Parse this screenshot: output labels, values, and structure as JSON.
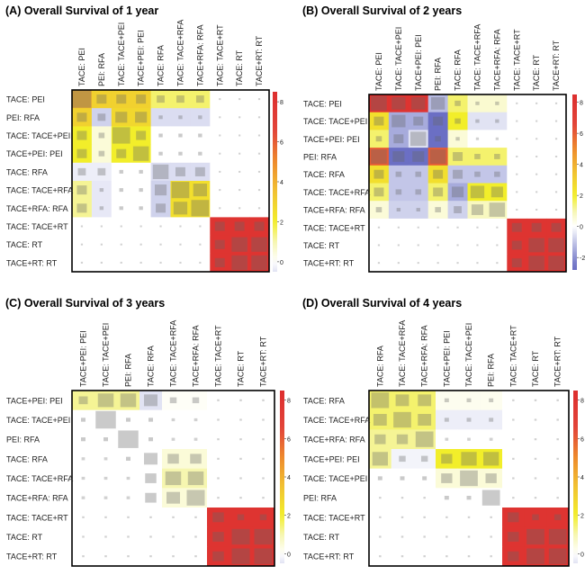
{
  "colors": {
    "scale": [
      [
        "#6b6fc4",
        -2.6
      ],
      [
        "#b7bbe3",
        -1.2
      ],
      [
        "#ffffff",
        0
      ],
      [
        "#f6f6b0",
        1
      ],
      [
        "#f2ee2a",
        2
      ],
      [
        "#f1c232",
        3.5
      ],
      [
        "#ee8b2c",
        5
      ],
      [
        "#e2453a",
        6.5
      ],
      [
        "#dd2e2e",
        8.5
      ]
    ],
    "square": "#666666",
    "frame": "#000000"
  },
  "chart_data": [
    {
      "type": "heatmap",
      "title": "(A) Overall Survival of 1 year",
      "rows": [
        "TACE: PEI",
        "PEI: RFA",
        "TACE: TACE+PEI",
        "TACE+PEI: PEI",
        "TACE: RFA",
        "TACE: TACE+RFA",
        "TACE+RFA: RFA",
        "TACE: TACE+RT",
        "TACE: RT",
        "TACE+RT: RT"
      ],
      "cols": [
        "TACE: PEI",
        "PEI: RFA",
        "TACE: TACE+PEI",
        "TACE+PEI: PEI",
        "TACE: RFA",
        "TACE: TACE+RFA",
        "TACE+RFA: RFA",
        "TACE: TACE+RT",
        "TACE: RT",
        "TACE+RT: RT"
      ],
      "colorbar": {
        "min": -0.5,
        "max": 8.5,
        "ticks": [
          0,
          2,
          4,
          6,
          8
        ]
      },
      "values": [
        [
          4,
          3,
          3,
          3,
          1.5,
          1.5,
          1.5,
          0,
          0,
          0
        ],
        [
          3,
          -0.8,
          2.8,
          2.8,
          -0.6,
          -0.6,
          -0.6,
          0,
          0,
          0
        ],
        [
          2,
          0.5,
          2,
          2,
          0,
          0,
          0,
          0,
          0,
          0
        ],
        [
          2,
          0.5,
          2,
          2,
          0,
          0,
          0,
          0,
          0,
          0
        ],
        [
          -0.3,
          -0.3,
          0,
          0,
          -0.6,
          -0.6,
          -0.6,
          0,
          0,
          0
        ],
        [
          1.2,
          -0.4,
          0,
          0,
          -0.8,
          2.5,
          2.5,
          0,
          0,
          0
        ],
        [
          1.2,
          -0.4,
          0,
          0,
          -0.8,
          2.5,
          2.5,
          0,
          0,
          0
        ],
        [
          0,
          0,
          0,
          0,
          0,
          0,
          0,
          8,
          8,
          8
        ],
        [
          0,
          0,
          0,
          0,
          0,
          0,
          0,
          8,
          8,
          8
        ],
        [
          0,
          0,
          0,
          0,
          0,
          0,
          0,
          8,
          8,
          8
        ]
      ],
      "sizes": [
        [
          0.95,
          0.5,
          0.5,
          0.5,
          0.4,
          0.4,
          0.4,
          0.1,
          0.1,
          0.1
        ],
        [
          0.5,
          0.4,
          0.6,
          0.6,
          0.2,
          0.2,
          0.2,
          0.1,
          0.1,
          0.1
        ],
        [
          0.5,
          0.3,
          0.9,
          0.5,
          0.2,
          0.2,
          0.2,
          0.1,
          0.1,
          0.1
        ],
        [
          0.5,
          0.3,
          0.5,
          0.8,
          0.2,
          0.2,
          0.2,
          0.1,
          0.1,
          0.1
        ],
        [
          0.4,
          0.4,
          0.2,
          0.2,
          0.8,
          0.5,
          0.5,
          0.1,
          0.1,
          0.1
        ],
        [
          0.5,
          0.2,
          0.2,
          0.2,
          0.6,
          0.9,
          0.7,
          0.1,
          0.1,
          0.1
        ],
        [
          0.5,
          0.2,
          0.2,
          0.2,
          0.5,
          0.7,
          0.9,
          0.1,
          0.1,
          0.1
        ],
        [
          0.1,
          0.1,
          0.1,
          0.1,
          0.1,
          0.1,
          0.1,
          0.5,
          0.5,
          0.5
        ],
        [
          0.1,
          0.1,
          0.1,
          0.1,
          0.1,
          0.1,
          0.1,
          0.5,
          0.8,
          0.8
        ],
        [
          0.1,
          0.1,
          0.1,
          0.1,
          0.1,
          0.1,
          0.1,
          0.5,
          0.8,
          0.8
        ]
      ]
    },
    {
      "type": "heatmap",
      "title": "(B) Overall Survival of 2 years",
      "rows": [
        "TACE: PEI",
        "TACE: TACE+PEI",
        "TACE+PEI: PEI",
        "PEI: RFA",
        "TACE: RFA",
        "TACE: TACE+RFA",
        "TACE+RFA: RFA",
        "TACE: TACE+RT",
        "TACE: RT",
        "TACE+RT: RT"
      ],
      "cols": [
        "TACE: PEI",
        "TACE: TACE+PEI",
        "TACE+PEI: PEI",
        "PEI: RFA",
        "TACE: RFA",
        "TACE: TACE+RFA",
        "TACE+RFA: RFA",
        "TACE: TACE+RT",
        "TACE: RT",
        "TACE+RT: RT"
      ],
      "colorbar": {
        "min": -2.8,
        "max": 8.5,
        "ticks": [
          -2,
          0,
          2,
          4,
          6,
          8
        ]
      },
      "values": [
        [
          8,
          8,
          8,
          -1.2,
          1.5,
          0.6,
          0.6,
          0,
          0,
          0
        ],
        [
          2.5,
          -1.5,
          -1.5,
          -2.8,
          2,
          -0.5,
          -0.5,
          0,
          0,
          0
        ],
        [
          1.5,
          -1.5,
          -0.5,
          -2.8,
          0.5,
          0,
          0,
          0,
          0,
          0
        ],
        [
          6,
          -2.8,
          -2.8,
          6,
          1.5,
          1.5,
          1.5,
          0,
          0,
          0
        ],
        [
          2.5,
          -1,
          -1,
          2.5,
          -1,
          -1,
          -1,
          0,
          0,
          0
        ],
        [
          1.5,
          -1,
          -1,
          1.5,
          -1.5,
          2,
          2,
          0,
          0,
          0
        ],
        [
          0.5,
          -0.8,
          -0.8,
          0.5,
          -0.8,
          0.8,
          0.8,
          0,
          0,
          0
        ],
        [
          0,
          0,
          0,
          0,
          0,
          0,
          0,
          8,
          8,
          8
        ],
        [
          0,
          0,
          0,
          0,
          0,
          0,
          0,
          8,
          8,
          8
        ],
        [
          0,
          0,
          0,
          0,
          0,
          0,
          0,
          8,
          8,
          8
        ]
      ],
      "sizes": [
        [
          0.8,
          0.7,
          0.7,
          0.7,
          0.3,
          0.2,
          0.2,
          0.1,
          0.1,
          0.1
        ],
        [
          0.5,
          0.7,
          0.5,
          0.5,
          0.3,
          0.2,
          0.2,
          0.1,
          0.1,
          0.1
        ],
        [
          0.3,
          0.5,
          0.8,
          0.3,
          0.2,
          0.15,
          0.15,
          0.1,
          0.1,
          0.1
        ],
        [
          0.8,
          0.6,
          0.6,
          0.8,
          0.5,
          0.3,
          0.3,
          0.1,
          0.1,
          0.1
        ],
        [
          0.5,
          0.3,
          0.3,
          0.5,
          0.5,
          0.3,
          0.3,
          0.1,
          0.1,
          0.1
        ],
        [
          0.5,
          0.3,
          0.3,
          0.5,
          0.6,
          0.7,
          0.6,
          0.1,
          0.1,
          0.1
        ],
        [
          0.3,
          0.2,
          0.2,
          0.3,
          0.4,
          0.6,
          0.8,
          0.1,
          0.1,
          0.1
        ],
        [
          0.1,
          0.1,
          0.1,
          0.1,
          0.1,
          0.1,
          0.1,
          0.5,
          0.5,
          0.5
        ],
        [
          0.1,
          0.1,
          0.1,
          0.1,
          0.1,
          0.1,
          0.1,
          0.5,
          0.8,
          0.8
        ],
        [
          0.1,
          0.1,
          0.1,
          0.1,
          0.1,
          0.1,
          0.1,
          0.5,
          0.8,
          0.8
        ]
      ]
    },
    {
      "type": "heatmap",
      "title": "(C) Overall Survival of 3 years",
      "rows": [
        "TACE+PEI: PEI",
        "TACE: TACE+PEI",
        "PEI: RFA",
        "TACE: RFA",
        "TACE: TACE+RFA",
        "TACE+RFA: RFA",
        "TACE: TACE+RT",
        "TACE: RT",
        "TACE+RT: RT"
      ],
      "cols": [
        "TACE+PEI: PEI",
        "TACE: TACE+PEI",
        "PEI: RFA",
        "TACE: RFA",
        "TACE: TACE+RFA",
        "TACE+RFA: RFA",
        "TACE: TACE+RT",
        "TACE: RT",
        "TACE+RT: RT"
      ],
      "colorbar": {
        "min": -0.5,
        "max": 8.5,
        "ticks": [
          0,
          2,
          4,
          6,
          8
        ]
      },
      "values": [
        [
          1.2,
          1.2,
          1.2,
          -0.5,
          0.1,
          0.1,
          0,
          0,
          0
        ],
        [
          0,
          0,
          0,
          0,
          0,
          0,
          0,
          0,
          0
        ],
        [
          0,
          0,
          0,
          0,
          0,
          0,
          0,
          0,
          0
        ],
        [
          0,
          0,
          0,
          0,
          0.5,
          0.5,
          0,
          0,
          0
        ],
        [
          0,
          0,
          0,
          0,
          1,
          1,
          0,
          0,
          0
        ],
        [
          0,
          0,
          0,
          0,
          0.5,
          0.5,
          0,
          0,
          0
        ],
        [
          0,
          0,
          0,
          0,
          0,
          0,
          8,
          8,
          8
        ],
        [
          0,
          0,
          0,
          0,
          0,
          0,
          8,
          8,
          8
        ],
        [
          0,
          0,
          0,
          0,
          0,
          0,
          8,
          8,
          8
        ]
      ],
      "sizes": [
        [
          0.4,
          0.7,
          0.7,
          0.6,
          0.3,
          0.3,
          0.1,
          0.1,
          0.1
        ],
        [
          0.2,
          0.9,
          0.2,
          0.2,
          0.15,
          0.15,
          0.1,
          0.1,
          0.1
        ],
        [
          0.2,
          0.2,
          0.9,
          0.2,
          0.15,
          0.15,
          0.1,
          0.1,
          0.1
        ],
        [
          0.15,
          0.15,
          0.2,
          0.6,
          0.5,
          0.5,
          0.1,
          0.1,
          0.1
        ],
        [
          0.15,
          0.15,
          0.15,
          0.5,
          0.7,
          0.7,
          0.1,
          0.1,
          0.1
        ],
        [
          0.15,
          0.15,
          0.15,
          0.5,
          0.6,
          0.8,
          0.1,
          0.1,
          0.1
        ],
        [
          0.1,
          0.1,
          0.1,
          0.1,
          0.1,
          0.1,
          0.5,
          0.3,
          0.3
        ],
        [
          0.1,
          0.1,
          0.1,
          0.1,
          0.1,
          0.1,
          0.5,
          0.8,
          0.8
        ],
        [
          0.1,
          0.1,
          0.1,
          0.1,
          0.1,
          0.1,
          0.5,
          0.8,
          0.8
        ]
      ]
    },
    {
      "type": "heatmap",
      "title": "(D) Overall Survival of 4 years",
      "rows": [
        "TACE: RFA",
        "TACE: TACE+RFA",
        "TACE+RFA: RFA",
        "TACE+PEI: PEI",
        "TACE: TACE+PEI",
        "PEI: RFA",
        "TACE: TACE+RT",
        "TACE: RT",
        "TACE+RT: RT"
      ],
      "cols": [
        "TACE: RFA",
        "TACE: TACE+RFA",
        "TACE+RFA: RFA",
        "TACE+PEI: PEI",
        "TACE: TACE+PEI",
        "PEI: RFA",
        "TACE: TACE+RT",
        "TACE: RT",
        "TACE+RT: RT"
      ],
      "colorbar": {
        "min": -0.5,
        "max": 8.5,
        "ticks": [
          0,
          2,
          4,
          6,
          8
        ]
      },
      "values": [
        [
          1.5,
          1.5,
          1.5,
          0.2,
          0.2,
          0.2,
          0,
          0,
          0
        ],
        [
          1.5,
          1.5,
          1.5,
          -0.3,
          -0.3,
          -0.3,
          0,
          0,
          0
        ],
        [
          1.2,
          1.2,
          1.2,
          0,
          0,
          0,
          0,
          0,
          0
        ],
        [
          1.2,
          -0.2,
          -0.2,
          2,
          2,
          2,
          0,
          0,
          0
        ],
        [
          0,
          0,
          0,
          0.5,
          0.5,
          0.5,
          0,
          0,
          0
        ],
        [
          0,
          0,
          0,
          0,
          0,
          0,
          0,
          0,
          0
        ],
        [
          0,
          0,
          0,
          0,
          0,
          0,
          8,
          8,
          8
        ],
        [
          0,
          0,
          0,
          0,
          0,
          0,
          8,
          8,
          8
        ],
        [
          0,
          0,
          0,
          0,
          0,
          0,
          8,
          8,
          8
        ]
      ],
      "sizes": [
        [
          0.8,
          0.6,
          0.6,
          0.2,
          0.2,
          0.2,
          0.1,
          0.1,
          0.1
        ],
        [
          0.6,
          0.8,
          0.6,
          0.2,
          0.2,
          0.2,
          0.1,
          0.1,
          0.1
        ],
        [
          0.5,
          0.5,
          0.8,
          0.15,
          0.15,
          0.15,
          0.1,
          0.1,
          0.1
        ],
        [
          0.7,
          0.3,
          0.3,
          0.5,
          0.7,
          0.7,
          0.1,
          0.1,
          0.1
        ],
        [
          0.2,
          0.2,
          0.2,
          0.5,
          0.8,
          0.5,
          0.1,
          0.1,
          0.1
        ],
        [
          0.1,
          0.1,
          0.1,
          0.2,
          0.2,
          0.8,
          0.1,
          0.1,
          0.1
        ],
        [
          0.1,
          0.1,
          0.1,
          0.1,
          0.1,
          0.1,
          0.5,
          0.3,
          0.3
        ],
        [
          0.1,
          0.1,
          0.1,
          0.1,
          0.1,
          0.1,
          0.5,
          0.8,
          0.8
        ],
        [
          0.1,
          0.1,
          0.1,
          0.1,
          0.1,
          0.1,
          0.5,
          0.8,
          0.8
        ]
      ]
    }
  ]
}
